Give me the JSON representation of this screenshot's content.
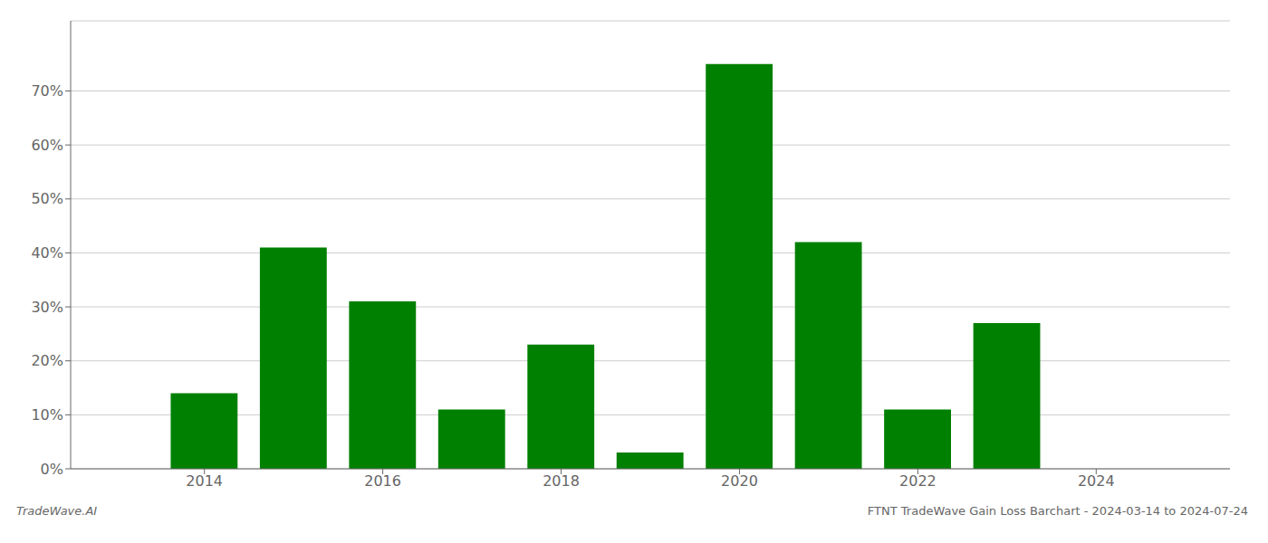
{
  "chart_data": {
    "type": "bar",
    "x": [
      2013,
      2014,
      2015,
      2016,
      2017,
      2018,
      2019,
      2020,
      2021,
      2022,
      2023,
      2024
    ],
    "values": [
      0.0,
      0.14,
      0.41,
      0.31,
      0.11,
      0.23,
      0.03,
      0.75,
      0.42,
      0.11,
      0.27,
      0.0
    ],
    "color": "#008000",
    "xlim": [
      2012.5,
      2025.5
    ],
    "xticks": [
      2014,
      2016,
      2018,
      2020,
      2022,
      2024
    ],
    "ylim": [
      0,
      0.83
    ],
    "yticks": [
      {
        "value": 0.0,
        "label": "0%"
      },
      {
        "value": 0.1,
        "label": "10%"
      },
      {
        "value": 0.2,
        "label": "20%"
      },
      {
        "value": 0.3,
        "label": "30%"
      },
      {
        "value": 0.4,
        "label": "40%"
      },
      {
        "value": 0.5,
        "label": "50%"
      },
      {
        "value": 0.6,
        "label": "60%"
      },
      {
        "value": 0.7,
        "label": "70%"
      }
    ],
    "grid": true,
    "annotations": [
      "TradeWave.AI",
      "FTNT TradeWave Gain Loss Barchart - 2024-03-14 to 2024-07-24"
    ]
  }
}
